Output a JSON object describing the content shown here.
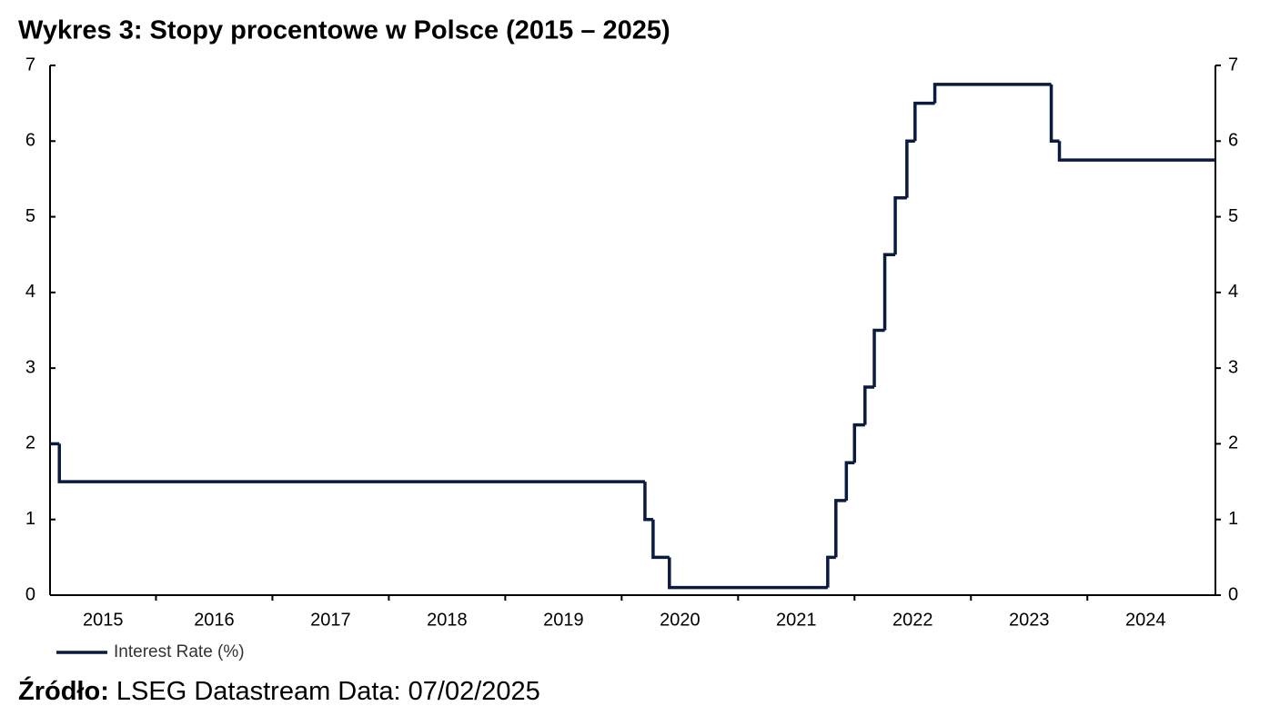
{
  "chart_data": {
    "type": "line",
    "drawstyle": "steps-post",
    "title": "Wykres 3: Stopy procentowe w Polsce (2015 – 2025)",
    "x": [
      2015.09,
      2015.17,
      2020.2,
      2020.27,
      2020.41,
      2021.77,
      2021.84,
      2021.93,
      2022.0,
      2022.09,
      2022.17,
      2022.26,
      2022.35,
      2022.45,
      2022.52,
      2022.69,
      2023.69,
      2023.76
    ],
    "series": [
      {
        "name": "Interest Rate (%)",
        "color": "#0b1a3f",
        "values": [
          2.0,
          1.5,
          1.0,
          0.5,
          0.1,
          0.5,
          1.25,
          1.75,
          2.25,
          2.75,
          3.5,
          4.5,
          5.25,
          6.0,
          6.5,
          6.75,
          6.0,
          5.75
        ]
      }
    ],
    "xlim": [
      2015.09,
      2025.1
    ],
    "xticks": [
      {
        "value": 2015,
        "label": "2015"
      },
      {
        "value": 2016,
        "label": "2016"
      },
      {
        "value": 2017,
        "label": "2017"
      },
      {
        "value": 2018,
        "label": "2018"
      },
      {
        "value": 2019,
        "label": "2019"
      },
      {
        "value": 2020,
        "label": "2020"
      },
      {
        "value": 2021,
        "label": "2021"
      },
      {
        "value": 2022,
        "label": "2022"
      },
      {
        "value": 2023,
        "label": "2023"
      },
      {
        "value": 2024,
        "label": "2024"
      }
    ],
    "ylim": [
      0,
      7
    ],
    "yticks": [
      0,
      1,
      2,
      3,
      4,
      5,
      6,
      7
    ],
    "y2lim": [
      0,
      7
    ],
    "y2ticks": [
      0,
      1,
      2,
      3,
      4,
      5,
      6,
      7
    ],
    "legend": "bottom-left",
    "source_label": "Źródło:",
    "source": "LSEG Datastream Data: 07/02/2025"
  }
}
